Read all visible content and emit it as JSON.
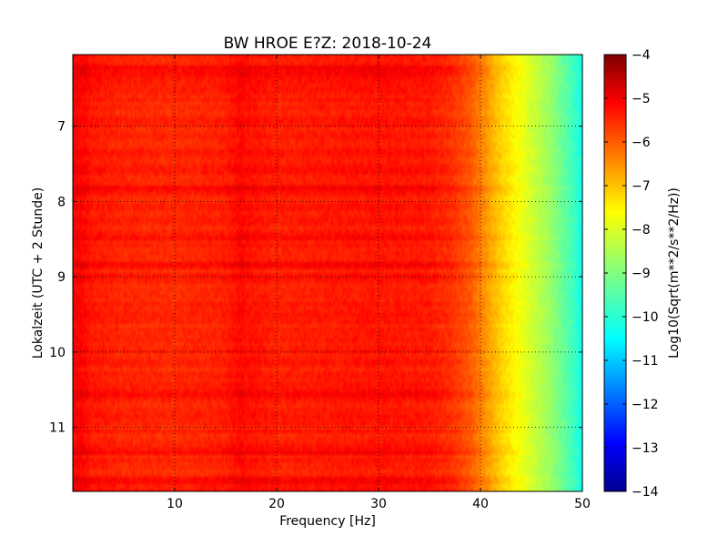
{
  "chart_data": {
    "type": "heatmap",
    "title": "BW HROE E?Z: 2018-10-24",
    "xlabel": "Frequency [Hz]",
    "ylabel": "Lokalzeit (UTC + 2 Stunde)",
    "colorbar_label": "Log10(Sqrt(m**2/s**2/Hz))",
    "colormap": "jet",
    "xlim": [
      0,
      50
    ],
    "ylim": [
      11.85,
      6.05
    ],
    "y_inverted": true,
    "color_range": [
      -14,
      -4
    ],
    "x_ticks": [
      10,
      20,
      30,
      40,
      50
    ],
    "x_tick_labels": [
      "10",
      "20",
      "30",
      "40",
      "50"
    ],
    "y_ticks": [
      7,
      8,
      9,
      10,
      11
    ],
    "y_tick_labels": [
      "7",
      "8",
      "9",
      "10",
      "11"
    ],
    "colorbar_ticks": [
      -4,
      -5,
      -6,
      -7,
      -8,
      -9,
      -10,
      -11,
      -12,
      -13,
      -14
    ],
    "colorbar_tick_labels": [
      "−4",
      "−5",
      "−6",
      "−7",
      "−8",
      "−9",
      "−10",
      "−11",
      "−12",
      "−13",
      "−14"
    ],
    "grid": true,
    "grid_style": "dotted",
    "frequency_profile": {
      "x": [
        0,
        1,
        2,
        5,
        10,
        15,
        16.5,
        17,
        20,
        25,
        30,
        35,
        37,
        39,
        40,
        41,
        42,
        43,
        44,
        45,
        46,
        47,
        48,
        49,
        50
      ],
      "y": [
        -5.2,
        -5.3,
        -5.5,
        -5.6,
        -5.65,
        -5.55,
        -5.3,
        -5.4,
        -5.55,
        -5.5,
        -5.45,
        -5.5,
        -5.7,
        -6.1,
        -6.5,
        -6.9,
        -7.3,
        -7.6,
        -7.9,
        -8.2,
        -8.5,
        -8.8,
        -9.2,
        -9.6,
        -10.1
      ]
    },
    "banded_hours": [
      6.25,
      6.35,
      7.6,
      7.85,
      8.45,
      8.85,
      9.0,
      10.55,
      11.3,
      11.7
    ]
  }
}
